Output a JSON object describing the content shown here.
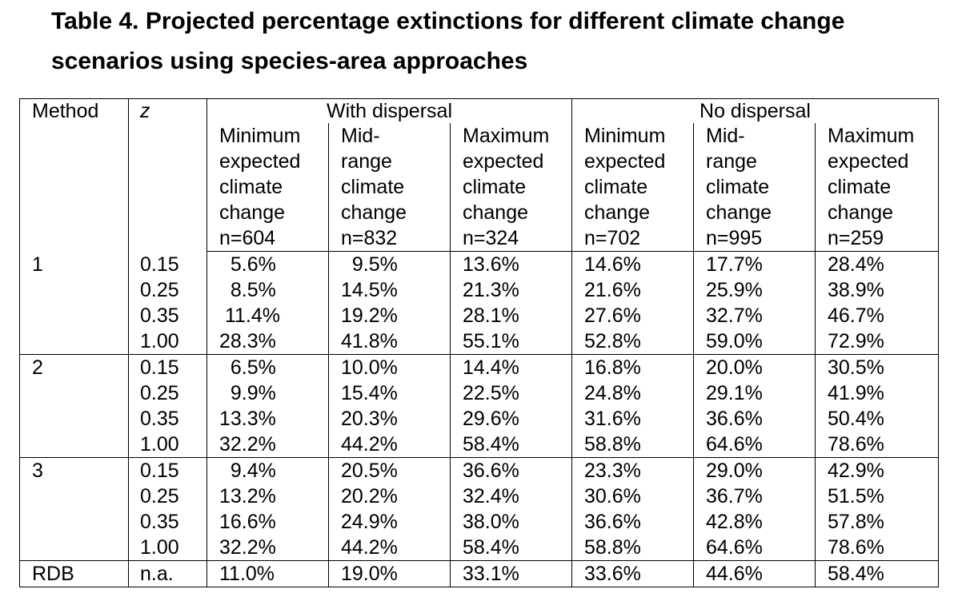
{
  "title": "Table 4. Projected percentage extinctions for different climate change scenarios using species-area approaches",
  "table": {
    "col_method": "Method",
    "col_z": "z",
    "group_with": "With dispersal",
    "group_without": "No dispersal",
    "subheaders": [
      [
        "Minimum",
        "expected",
        "climate",
        "change",
        "n=604"
      ],
      [
        "Mid-",
        "range",
        "climate",
        "change",
        "n=832"
      ],
      [
        "Maximum",
        "expected",
        "climate",
        "change",
        "n=324"
      ],
      [
        "Minimum",
        "expected",
        "climate",
        "change",
        "n=702"
      ],
      [
        "Mid-",
        "range",
        "climate",
        "change",
        "n=995"
      ],
      [
        "Maximum",
        "expected",
        "climate",
        "change",
        "n=259"
      ]
    ],
    "groups": [
      {
        "method": "1",
        "rows": [
          {
            "z": "0.15",
            "values": [
              "  5.6%",
              "  9.5%",
              "13.6%",
              "14.6%",
              "17.7%",
              "28.4%"
            ]
          },
          {
            "z": "0.25",
            "values": [
              "  8.5%",
              "14.5%",
              "21.3%",
              "21.6%",
              "25.9%",
              "38.9%"
            ]
          },
          {
            "z": "0.35",
            "values": [
              " 11.4%",
              "19.2%",
              "28.1%",
              "27.6%",
              "32.7%",
              "46.7%"
            ]
          },
          {
            "z": "1.00",
            "values": [
              "28.3%",
              "41.8%",
              "55.1%",
              "52.8%",
              "59.0%",
              "72.9%"
            ]
          }
        ]
      },
      {
        "method": "2",
        "rows": [
          {
            "z": "0.15",
            "values": [
              "  6.5%",
              "10.0%",
              "14.4%",
              "16.8%",
              "20.0%",
              "30.5%"
            ]
          },
          {
            "z": "0.25",
            "values": [
              "  9.9%",
              "15.4%",
              "22.5%",
              "24.8%",
              "29.1%",
              "41.9%"
            ]
          },
          {
            "z": "0.35",
            "values": [
              "13.3%",
              "20.3%",
              "29.6%",
              "31.6%",
              "36.6%",
              "50.4%"
            ]
          },
          {
            "z": "1.00",
            "values": [
              "32.2%",
              "44.2%",
              "58.4%",
              "58.8%",
              "64.6%",
              "78.6%"
            ]
          }
        ]
      },
      {
        "method": "3",
        "rows": [
          {
            "z": "0.15",
            "values": [
              "  9.4%",
              "20.5%",
              "36.6%",
              "23.3%",
              "29.0%",
              "42.9%"
            ]
          },
          {
            "z": "0.25",
            "values": [
              "13.2%",
              "20.2%",
              "32.4%",
              "30.6%",
              "36.7%",
              "51.5%"
            ]
          },
          {
            "z": "0.35",
            "values": [
              "16.6%",
              "24.9%",
              "38.0%",
              "36.6%",
              "42.8%",
              "57.8%"
            ]
          },
          {
            "z": "1.00",
            "values": [
              "32.2%",
              "44.2%",
              "58.4%",
              "58.8%",
              "64.6%",
              "78.6%"
            ]
          }
        ]
      },
      {
        "method": "RDB",
        "rows": [
          {
            "z": "n.a.",
            "values": [
              "11.0%",
              "19.0%",
              "33.1%",
              "33.6%",
              "44.6%",
              "58.4%"
            ]
          }
        ]
      }
    ]
  }
}
